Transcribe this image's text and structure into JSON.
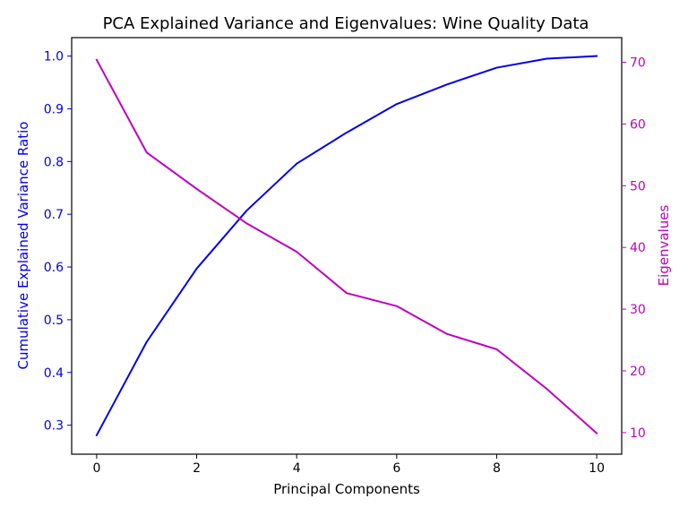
{
  "chart_data": {
    "type": "line",
    "title": "PCA Explained Variance and Eigenvalues: Wine Quality Data",
    "xlabel": "Principal Components",
    "ylabel_left": "Cumulative Explained Variance Ratio",
    "ylabel_right": "Eigenvalues",
    "x": [
      0,
      1,
      2,
      3,
      4,
      5,
      6,
      7,
      8,
      9,
      10
    ],
    "x_ticks": [
      "0",
      "2",
      "4",
      "6",
      "8",
      "10"
    ],
    "y_left_ticks": [
      "0.3",
      "0.4",
      "0.5",
      "0.6",
      "0.7",
      "0.8",
      "0.9",
      "1.0"
    ],
    "y_right_ticks": [
      "10",
      "20",
      "30",
      "40",
      "50",
      "60",
      "70"
    ],
    "xlim": [
      -0.5,
      10.5
    ],
    "ylim_left": [
      0.245,
      1.035
    ],
    "ylim_right": [
      6.5,
      74.0
    ],
    "grid": false,
    "series": [
      {
        "name": "Cumulative Explained Variance Ratio",
        "axis": "left",
        "color": "#0000ee",
        "values": [
          0.281,
          0.458,
          0.597,
          0.707,
          0.796,
          0.855,
          0.909,
          0.946,
          0.978,
          0.995,
          1.0
        ]
      },
      {
        "name": "Eigenvalues",
        "axis": "right",
        "color": "#bf00bf",
        "values": [
          70.4,
          55.4,
          49.5,
          43.9,
          39.3,
          32.6,
          30.5,
          26.0,
          23.5,
          17.1,
          9.9
        ]
      }
    ]
  }
}
